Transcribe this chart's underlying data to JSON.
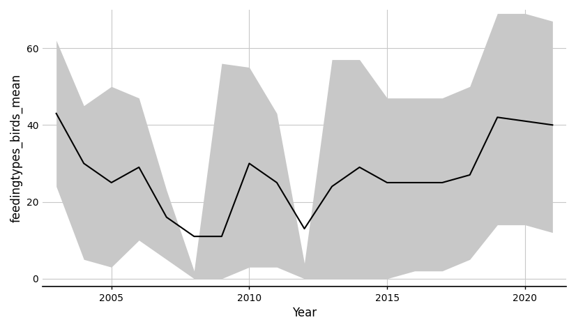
{
  "years": [
    2003,
    2004,
    2005,
    2006,
    2007,
    2008,
    2009,
    2010,
    2011,
    2012,
    2013,
    2014,
    2015,
    2016,
    2017,
    2018,
    2019,
    2020,
    2021
  ],
  "mean": [
    43,
    30,
    25,
    29,
    16,
    11,
    11,
    30,
    25,
    13,
    24,
    29,
    25,
    25,
    25,
    27,
    42,
    41,
    40
  ],
  "upper": [
    62,
    45,
    50,
    47,
    23,
    2,
    56,
    55,
    43,
    4,
    57,
    57,
    47,
    47,
    47,
    50,
    69,
    69,
    67
  ],
  "lower": [
    24,
    5,
    3,
    10,
    5,
    0,
    0,
    3,
    3,
    0,
    0,
    0,
    0,
    2,
    2,
    5,
    14,
    14,
    12
  ],
  "xlabel": "Year",
  "ylabel": "feedingtypes_birds_mean",
  "xlim": [
    2002.5,
    2021.5
  ],
  "ylim": [
    -2,
    70
  ],
  "yticks": [
    0,
    20,
    40,
    60
  ],
  "xticks": [
    2005,
    2010,
    2015,
    2020
  ],
  "grid_color": "#c8c8c8",
  "line_color": "#000000",
  "fill_color": "#c8c8c8",
  "fill_alpha": 1.0,
  "bg_color": "#ffffff",
  "panel_bg": "#ffffff",
  "line_width": 1.5,
  "axis_label_fontsize": 12,
  "tick_fontsize": 10
}
